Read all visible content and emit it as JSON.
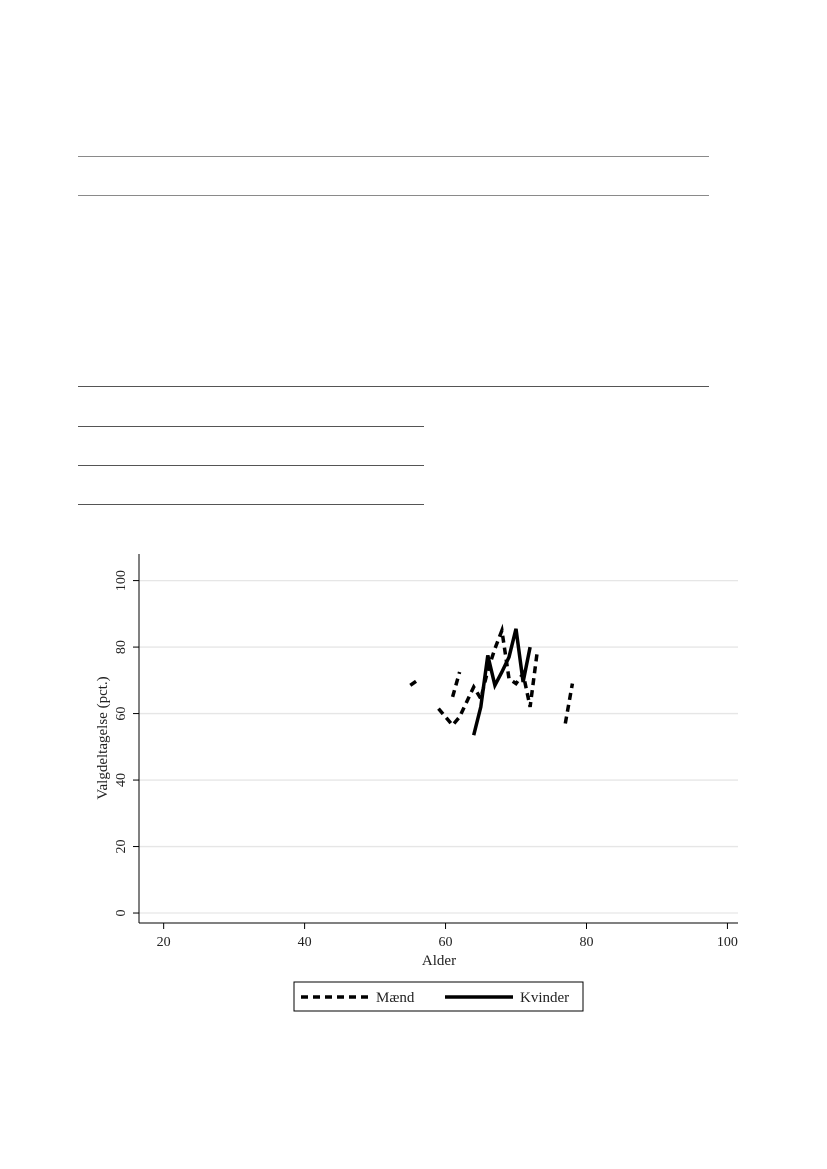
{
  "chart_data": {
    "type": "line",
    "xlabel": "Alder",
    "ylabel": "Valgdeltagelse (pct.)",
    "xlim": [
      16.5,
      101.5
    ],
    "ylim": [
      -3,
      108
    ],
    "xticks": [
      20,
      40,
      60,
      80,
      100
    ],
    "yticks": [
      0,
      20,
      40,
      60,
      80,
      100
    ],
    "grid": "horizontal",
    "legend": "bottom",
    "series": [
      {
        "name": "Mænd",
        "style": "dashed",
        "color": "#000000",
        "segments": [
          [
            [
              55,
              68.5
            ],
            [
              56,
              70
            ]
          ],
          [
            [
              59,
              61.5
            ],
            [
              60,
              59
            ],
            [
              61,
              56.5
            ],
            [
              62,
              59
            ],
            [
              63,
              63.5
            ],
            [
              64,
              68
            ],
            [
              65,
              64.5
            ],
            [
              66,
              73
            ],
            [
              67,
              79.5
            ],
            [
              68,
              85
            ],
            [
              69,
              70.5
            ],
            [
              70,
              69
            ],
            [
              71,
              72
            ],
            [
              72,
              62
            ],
            [
              73,
              78.5
            ]
          ],
          [
            [
              61,
              65
            ],
            [
              62,
              72.5
            ]
          ],
          [
            [
              77,
              57
            ],
            [
              78,
              69
            ]
          ]
        ]
      },
      {
        "name": "Kvinder",
        "style": "solid",
        "color": "#000000",
        "segments": [
          [
            [
              64,
              53.5
            ],
            [
              65,
              62
            ],
            [
              66,
              77.5
            ],
            [
              67,
              68.5
            ],
            [
              68,
              72.5
            ],
            [
              69,
              77
            ],
            [
              70,
              85.5
            ],
            [
              71,
              69.5
            ],
            [
              72,
              80
            ]
          ]
        ]
      }
    ]
  }
}
